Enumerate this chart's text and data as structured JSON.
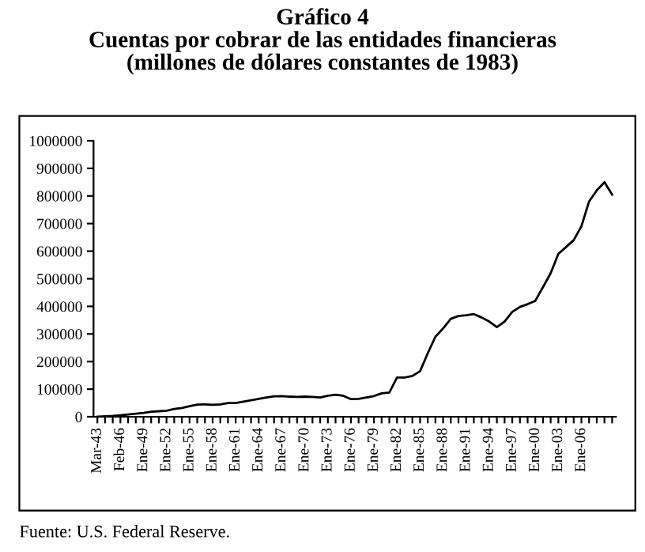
{
  "chart_data": {
    "type": "line",
    "title": "Gráfico 4\nCuentas por cobrar de las entidades financieras\n(millones de dólares constantes de 1983)",
    "categories": [
      "Mar-43",
      null,
      null,
      "Feb-46",
      null,
      null,
      "Ene-49",
      null,
      null,
      "Ene-52",
      null,
      null,
      "Ene-55",
      null,
      null,
      "Ene-58",
      null,
      null,
      "Ene-61",
      null,
      null,
      "Ene-64",
      null,
      null,
      "Ene-67",
      null,
      null,
      "Ene-70",
      null,
      null,
      "Ene-73",
      null,
      null,
      "Ene-76",
      null,
      null,
      "Ene-79",
      null,
      null,
      "Ene-82",
      null,
      null,
      "Ene-85",
      null,
      null,
      "Ene-88",
      null,
      null,
      "Ene-91",
      null,
      null,
      "Ene-94",
      null,
      null,
      "Ene-97",
      null,
      null,
      "Ene-00",
      null,
      null,
      "Ene-03",
      null,
      null,
      "Ene-06",
      null,
      null,
      null,
      null
    ],
    "series": [
      {
        "color": "#000000",
        "values": [
          0,
          2000,
          3000,
          5000,
          8000,
          11000,
          14000,
          18000,
          20000,
          22000,
          28000,
          32000,
          38000,
          44000,
          45000,
          43000,
          45000,
          50000,
          50000,
          55000,
          60000,
          65000,
          70000,
          74000,
          75000,
          73000,
          72000,
          73000,
          72000,
          70000,
          76000,
          80000,
          76000,
          64000,
          65000,
          70000,
          75000,
          85000,
          88000,
          142000,
          142000,
          148000,
          165000,
          230000,
          290000,
          320000,
          355000,
          365000,
          368000,
          372000,
          360000,
          345000,
          325000,
          345000,
          380000,
          398000,
          408000,
          420000,
          470000,
          520000,
          590000,
          615000,
          640000,
          690000,
          780000,
          820000,
          850000,
          805000
        ]
      }
    ],
    "ylim": [
      0,
      1000000
    ],
    "yticks": [
      0,
      100000,
      200000,
      300000,
      400000,
      500000,
      600000,
      700000,
      800000,
      900000,
      1000000
    ],
    "grid": false,
    "legend": false,
    "marker": "none",
    "line_style": "solid",
    "annotations": [
      "Fuente: U.S. Federal Reserve."
    ]
  }
}
